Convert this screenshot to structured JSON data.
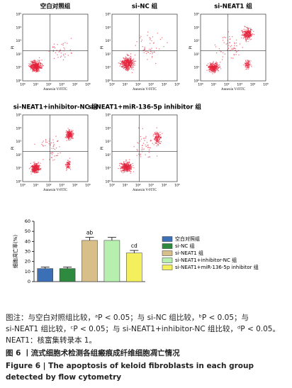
{
  "panels": [
    {
      "title": "空白对照组"
    },
    {
      "title": "si-NC 组"
    },
    {
      "title": "si-NEAT1 组"
    },
    {
      "title": "si-NEAT1+inhibitor-NC 组"
    },
    {
      "title": "si-NEAT1+miR-136-5p inhibitor 组"
    }
  ],
  "flow_axis": {
    "x_label": "Annexin V-FITC",
    "y_label": "PI",
    "ticks": [
      "10⁰",
      "10¹",
      "10²",
      "10³",
      "10⁴",
      "10⁵"
    ]
  },
  "chart_data": {
    "type": "bar",
    "y_label": "细胞凋亡率(%)",
    "categories": [
      "空白对照组",
      "si-NC 组",
      "si-NEAT1 组",
      "si-NEAT1+inhibitor-NC 组",
      "si-NEAT1+miR-136-5p inhibitor 组"
    ],
    "values": [
      13,
      13,
      41,
      41,
      28.5
    ],
    "errors": [
      1.5,
      1.5,
      3,
      3,
      2.5
    ],
    "annotations": [
      null,
      null,
      "ab",
      null,
      "cd"
    ],
    "colors": [
      "#3b6fb6",
      "#2e8a3e",
      "#d8bf8a",
      "#b6efae",
      "#f4ef5c"
    ],
    "ylim": [
      0,
      60
    ],
    "yticks": [
      0,
      10,
      20,
      30,
      40,
      50,
      60
    ]
  },
  "caption": {
    "lines": [
      "图注：与空白对照组比较，ᵃP < 0.05；与 si-NC 组比较，ᵇP < 0.05；与",
      "si-NEAT1 组比较，ᶜP < 0.05；与 si-NEAT1+inhibitor-NC 组比较，ᵈP < 0.05。",
      "NEAT1：核富集转录本 1。"
    ],
    "figure_title_cn": "图 6 丨流式细胞术检测各组瘢痕成纤维细胞凋亡情况",
    "figure_title_en": "Figure 6 | The apoptosis of keloid fibroblasts in each group detected by flow cytometry"
  }
}
